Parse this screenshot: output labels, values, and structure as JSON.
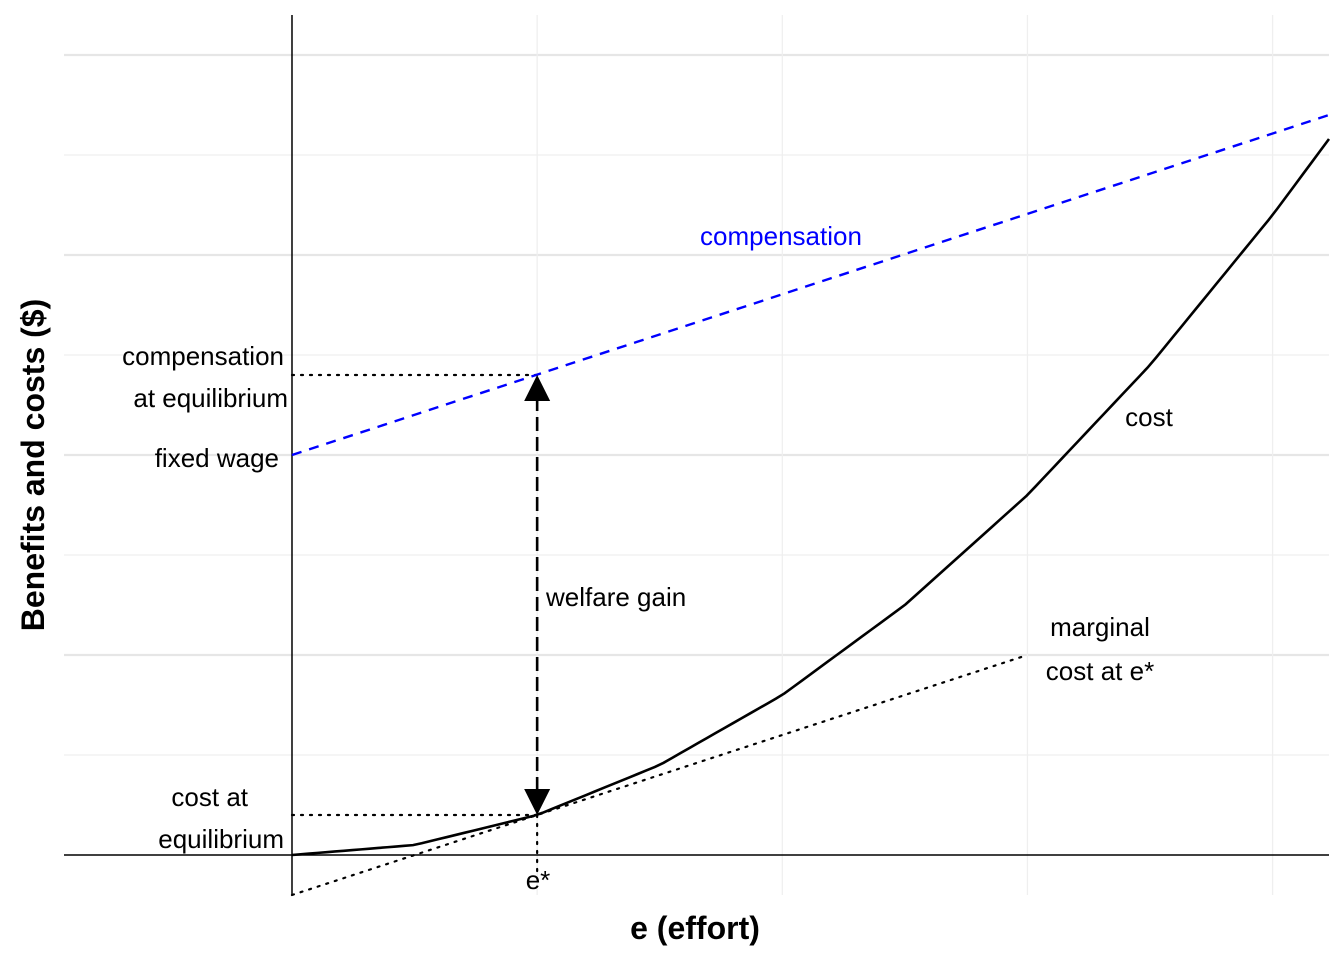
{
  "chart_data": {
    "type": "line",
    "title": "",
    "xlabel": "e (effort)",
    "ylabel": "Benefits and costs ($)",
    "xlim": [
      -0.93,
      4.23
    ],
    "ylim": [
      -0.4,
      8.4
    ],
    "grid": true,
    "x_marker": {
      "x": 1,
      "label": "e*"
    },
    "series": [
      {
        "name": "compensation",
        "style": "dashed",
        "color": "#0000ff",
        "x": [
          0,
          4.23
        ],
        "y": [
          4.0,
          7.4
        ]
      },
      {
        "name": "cost",
        "style": "solid",
        "color": "#000000",
        "x": [
          0,
          0.5,
          1,
          1.5,
          2,
          2.5,
          3,
          3.5,
          4,
          4.23
        ],
        "y": [
          0,
          0.1,
          0.4,
          0.9,
          1.6,
          2.5,
          3.6,
          4.9,
          6.4,
          7.16
        ]
      },
      {
        "name": "marginal cost at e*",
        "style": "dotted",
        "color": "#000000",
        "x": [
          0,
          3
        ],
        "y": [
          -0.4,
          2.0
        ]
      }
    ],
    "annotations": [
      {
        "id": "compensation_eq",
        "lines": [
          "compensation",
          "at equilibrium"
        ],
        "y": 4.8
      },
      {
        "id": "fixed_wage",
        "lines": [
          "fixed wage"
        ],
        "y": 4.0
      },
      {
        "id": "cost_eq",
        "lines": [
          "cost at",
          "equilibrium"
        ],
        "y": 0.4
      },
      {
        "id": "welfare_gain",
        "lines": [
          "welfare gain"
        ],
        "x": 1,
        "y_from": 0.4,
        "y_to": 4.8
      },
      {
        "id": "compensation_label",
        "lines": [
          "compensation"
        ]
      },
      {
        "id": "cost_label",
        "lines": [
          "cost"
        ]
      },
      {
        "id": "marginal_label",
        "lines": [
          "marginal",
          "cost at e*"
        ]
      }
    ],
    "colors": {
      "compensation": "#0000ff",
      "cost": "#000000",
      "grid": "#e6e6e6"
    }
  }
}
